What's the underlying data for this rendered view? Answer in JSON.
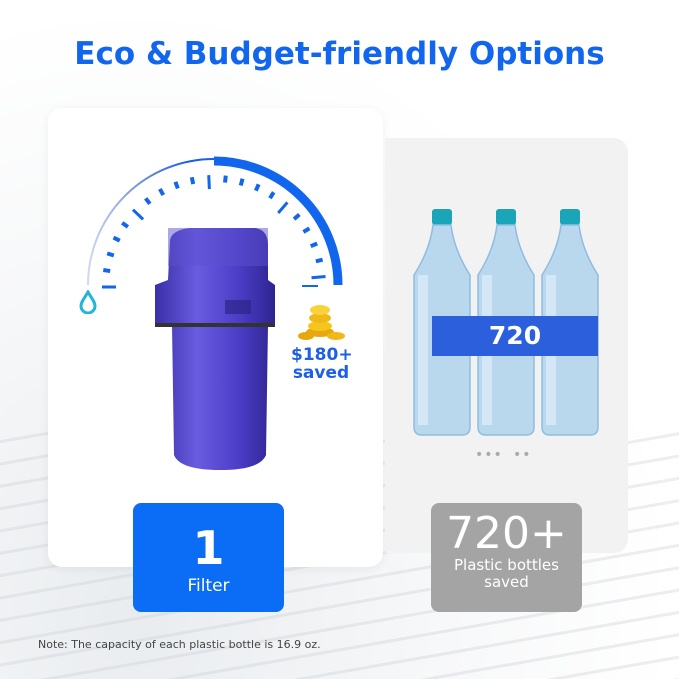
{
  "title": "Eco & Budget-friendly Options",
  "filter_card": {
    "savings_amount": "$180+",
    "savings_label": "saved",
    "count": "1",
    "count_label": "Filter"
  },
  "bottles_card": {
    "band_label": "720",
    "count": "720+",
    "count_label_line1": "Plastic bottles",
    "count_label_line2": "saved"
  },
  "note": "Note: The capacity of each plastic bottle is 16.9 oz.",
  "colors": {
    "accent_blue": "#1266ee",
    "box_blue": "#0b6cf5",
    "box_grey": "#a4a4a4",
    "filter_purple": "#4f3fc4",
    "bottle_cap": "#1aa5b8"
  },
  "icons": [
    "gauge-icon",
    "water-drop-icon",
    "coins-icon"
  ]
}
